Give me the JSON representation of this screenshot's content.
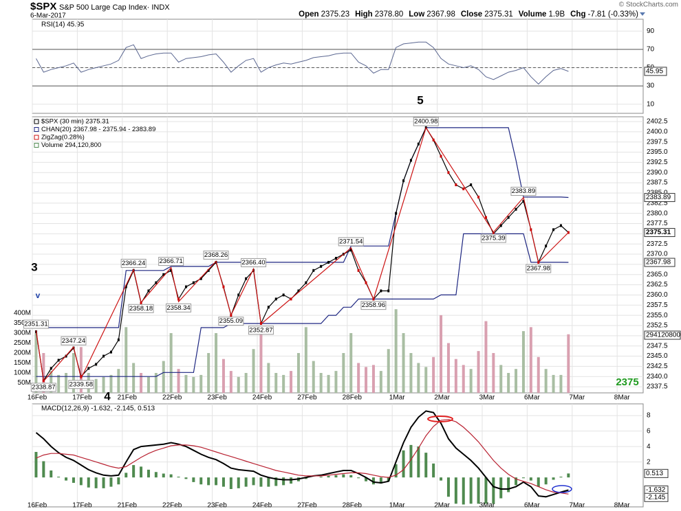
{
  "header": {
    "symbol": "$SPX",
    "name": "S&P 500 Large Cap Index· INDX",
    "date": "6-Mar-2017",
    "quote": [
      {
        "label": "Open",
        "value": "2375.23"
      },
      {
        "label": "High",
        "value": "2378.80"
      },
      {
        "label": "Low",
        "value": "2367.98"
      },
      {
        "label": "Close",
        "value": "2375.31"
      },
      {
        "label": "Volume",
        "value": "1.9B"
      },
      {
        "label": "Chg",
        "value": "-7.81 (-0.33%)"
      }
    ],
    "copyright": "© StockCharts.com"
  },
  "chart_data": {
    "type": "line",
    "x_labels": [
      "16Feb",
      "17Feb",
      "21Feb",
      "22Feb",
      "23Feb",
      "24Feb",
      "27Feb",
      "28Feb",
      "1Mar",
      "2Mar",
      "3Mar",
      "6Mar",
      "7Mar",
      "8Mar"
    ],
    "rsi": {
      "label": "RSI(14) 45.95",
      "color": "#5a6690",
      "ylim": [
        0,
        103
      ],
      "yticks": [
        90,
        70,
        50,
        30,
        10
      ],
      "last": 45.95,
      "values": [
        60,
        45,
        48,
        50,
        52,
        55,
        45,
        48,
        50,
        52,
        54,
        58,
        72,
        75,
        60,
        63,
        65,
        66,
        66,
        56,
        60,
        61,
        62,
        64,
        65,
        56,
        45,
        52,
        58,
        60,
        45,
        50,
        53,
        55,
        54,
        56,
        58,
        61,
        62,
        63,
        65,
        66,
        66,
        56,
        52,
        44,
        48,
        48,
        72,
        76,
        77,
        78,
        78,
        72,
        60,
        54,
        52,
        50,
        52,
        48,
        40,
        37,
        41,
        45,
        47,
        50,
        40,
        32,
        40,
        47,
        49,
        45.95
      ]
    },
    "price": {
      "ylim": [
        2336,
        2403.68
      ],
      "yticks": [
        2337.5,
        {
          "value": 2340,
          "label": "2340.0"
        },
        2342.5,
        {
          "value": 2345,
          "label": "2345.0"
        },
        2347.5,
        {
          "value": 2350,
          "label": "2350.0"
        },
        2352.5,
        {
          "value": 2355,
          "label": "2355.0"
        },
        2357.5,
        {
          "value": 2360,
          "label": "2360.0"
        },
        2362.5,
        {
          "value": 2365,
          "label": "2365.0"
        },
        2367.5,
        {
          "value": 2370,
          "label": "2370.0"
        },
        2372.5,
        {
          "value": 2375,
          "label": "2375.0"
        },
        2377.5,
        {
          "value": 2380,
          "label": "2380.0"
        },
        2382.5,
        {
          "value": 2385,
          "label": "2385.0"
        },
        2387.5,
        {
          "value": 2390,
          "label": "2390.0"
        },
        2392.5,
        {
          "value": 2395,
          "label": "2395.0"
        },
        2397.5,
        {
          "value": 2400,
          "label": "2400.0"
        },
        2402.5
      ],
      "name": "$SPX (30 min) 2375.31",
      "color": "#000000",
      "values": [
        2351,
        2339,
        2342,
        2344,
        2345,
        2347,
        2340,
        2342,
        2343,
        2345,
        2346,
        2349,
        2362,
        2366,
        2358,
        2361,
        2363,
        2365,
        2366,
        2359,
        2362,
        2363,
        2364,
        2366,
        2368,
        2362,
        2355,
        2360,
        2364,
        2366,
        2353,
        2357,
        2359,
        2360,
        2359,
        2361,
        2363,
        2366,
        2367,
        2368,
        2369,
        2370,
        2371,
        2366,
        2363,
        2359,
        2361,
        2361,
        2380,
        2388,
        2393,
        2397,
        2401,
        2398,
        2394,
        2390,
        2387,
        2386,
        2387,
        2384,
        2379,
        2375,
        2377,
        2379,
        2381,
        2383,
        2376,
        2368,
        2372,
        2376,
        2377,
        2375.31
      ],
      "channel": {
        "name": "CHAN(20) 2367.98 - 2375.94 - 2383.89",
        "color": "#1c2580",
        "upper": [
          2352,
          2352,
          2352,
          2352,
          2352,
          2352,
          2352,
          2352,
          2352,
          2352,
          2352,
          2352,
          2366,
          2366,
          2366,
          2366,
          2366,
          2366,
          2367,
          2367,
          2367,
          2367,
          2367,
          2367,
          2368,
          2368,
          2368,
          2368,
          2368,
          2368,
          2368,
          2368,
          2368,
          2368,
          2368,
          2368,
          2368,
          2368,
          2368,
          2368,
          2368,
          2368,
          2372,
          2372,
          2372,
          2372,
          2372,
          2372,
          2380,
          2388,
          2393,
          2397,
          2401,
          2401,
          2401,
          2401,
          2401,
          2401,
          2401,
          2401,
          2401,
          2401,
          2401,
          2401,
          2393,
          2384,
          2384,
          2384,
          2384,
          2384,
          2384,
          2383.89
        ],
        "lower": [
          2340,
          2340,
          2340,
          2340,
          2340,
          2340,
          2340,
          2340,
          2340,
          2340,
          2340,
          2340,
          2340,
          2340,
          2340,
          2340,
          2340,
          2341,
          2341,
          2341,
          2341,
          2341,
          2352,
          2352,
          2352,
          2352,
          2353,
          2353,
          2353,
          2353,
          2353,
          2353,
          2353,
          2353,
          2353,
          2353,
          2353,
          2353,
          2353,
          2355,
          2355,
          2357,
          2357,
          2359,
          2359,
          2359,
          2359,
          2359,
          2359,
          2359,
          2359,
          2359,
          2359,
          2359,
          2360,
          2360,
          2360,
          2375,
          2375,
          2375,
          2375,
          2375,
          2375,
          2375,
          2375,
          2375,
          2368,
          2368,
          2368,
          2368,
          2368,
          2367.98
        ]
      },
      "zigzag": {
        "name": "ZigZag(0.28%)",
        "color": "#cc1111",
        "values": [
          2351.31,
          2338.87,
          2347.24,
          2339.58,
          2366.24,
          2358.18,
          2366.71,
          2358.34,
          2368.26,
          2355.09,
          2366.4,
          2352.87,
          2371.54,
          2358.96,
          2400.98,
          2375.39,
          2383.89,
          2367.98
        ],
        "value_labels": [
          "2351.31",
          "2338.87",
          "2347.24",
          "2339.58",
          "2366.24",
          "2358.18",
          "2366.71",
          "2358.34",
          "2368.26",
          "2355.09",
          "2366.40",
          "2352.87",
          "2371.54",
          "2358.96",
          "2400.98",
          "2375.39",
          "2383.89",
          "2367.98"
        ]
      },
      "right_labels": [
        2383.89,
        2375.31,
        2367.98
      ],
      "annotations": [
        "3",
        "4",
        "5",
        "v",
        "2375"
      ]
    },
    "volume": {
      "name": "Volume 294,120,800",
      "last_label": "294120800",
      "ylim": [
        0,
        400
      ],
      "yticks": [
        {
          "value": 400,
          "label": "400M"
        },
        {
          "value": 350,
          "label": "350M"
        },
        {
          "value": 300,
          "label": "300M"
        },
        {
          "value": 250,
          "label": "250M"
        },
        {
          "value": 200,
          "label": "200M"
        },
        {
          "value": 150,
          "label": "150M"
        },
        {
          "value": 100,
          "label": "100M"
        },
        {
          "value": 50,
          "label": "50M"
        }
      ],
      "up_color": "#a9bea3",
      "down_color": "#d9a0b0",
      "values": [
        300,
        200,
        110,
        90,
        100,
        200,
        230,
        100,
        70,
        80,
        90,
        120,
        330,
        150,
        100,
        80,
        100,
        160,
        300,
        120,
        90,
        80,
        90,
        200,
        300,
        170,
        110,
        80,
        100,
        220,
        300,
        150,
        100,
        90,
        110,
        200,
        330,
        160,
        100,
        90,
        110,
        200,
        300,
        150,
        130,
        140,
        110,
        220,
        420,
        300,
        200,
        150,
        130,
        180,
        390,
        250,
        170,
        140,
        120,
        210,
        360,
        200,
        140,
        100,
        120,
        310,
        330,
        180,
        120,
        90,
        90,
        294.12
      ]
    },
    "macd": {
      "label": "MACD(12,26,9) -1.632, -2.145, 0.513",
      "ylim": [
        -3.81,
        9.52
      ],
      "yticks": [
        8,
        6,
        4,
        2
      ],
      "last_labels": [
        0.513,
        -1.632,
        -2.145
      ],
      "series": [
        {
          "name": "MACD",
          "color": "#000000",
          "values": [
            5.8,
            5.0,
            4.0,
            3.2,
            2.6,
            2.2,
            1.6,
            1.0,
            0.6,
            0.3,
            0.2,
            0.3,
            2.0,
            3.6,
            4.0,
            4.1,
            4.2,
            4.3,
            4.5,
            4.3,
            4.0,
            3.5,
            3.0,
            2.6,
            2.3,
            1.8,
            1.2,
            1.0,
            0.9,
            0.8,
            0.3,
            0.0,
            -0.2,
            -0.3,
            -0.3,
            -0.2,
            0.0,
            0.2,
            0.3,
            0.5,
            0.7,
            0.9,
            0.9,
            0.5,
            0.0,
            -0.6,
            -0.7,
            -0.5,
            2.0,
            4.5,
            6.5,
            7.8,
            8.6,
            8.4,
            7.0,
            5.0,
            3.8,
            3.0,
            2.2,
            1.2,
            0.0,
            -1.2,
            -1.5,
            -1.5,
            -1.2,
            -0.6,
            -1.2,
            -2.4,
            -2.5,
            -2.2,
            -1.9,
            -1.632
          ]
        },
        {
          "name": "Signal",
          "color": "#b82030",
          "values": [
            2.5,
            2.9,
            3.1,
            3.1,
            3.0,
            2.9,
            2.6,
            2.3,
            2.0,
            1.7,
            1.4,
            1.2,
            1.4,
            2.0,
            2.6,
            3.1,
            3.5,
            3.8,
            4.1,
            4.2,
            4.2,
            4.1,
            3.9,
            3.6,
            3.3,
            3.0,
            2.7,
            2.4,
            2.1,
            1.8,
            1.5,
            1.2,
            0.9,
            0.7,
            0.5,
            0.3,
            0.2,
            0.2,
            0.2,
            0.3,
            0.4,
            0.5,
            0.6,
            0.6,
            0.5,
            0.3,
            0.1,
            0.0,
            0.3,
            1.0,
            2.3,
            3.8,
            5.4,
            6.6,
            7.4,
            7.5,
            7.2,
            6.5,
            5.6,
            4.6,
            3.4,
            2.2,
            1.2,
            0.4,
            -0.2,
            -0.5,
            -0.8,
            -1.2,
            -1.6,
            -1.9,
            -2.0,
            -2.145
          ]
        }
      ],
      "histogram": {
        "color": "#4f8a4f",
        "values": [
          3.3,
          2.1,
          0.9,
          0.1,
          -0.4,
          -0.7,
          -1.0,
          -1.3,
          -1.4,
          -1.4,
          -1.2,
          -0.9,
          0.6,
          1.6,
          1.4,
          1.0,
          0.7,
          0.5,
          0.4,
          0.1,
          -0.2,
          -0.6,
          -0.9,
          -1.0,
          -1.0,
          -1.2,
          -1.5,
          -1.4,
          -1.2,
          -1.0,
          -1.2,
          -1.2,
          -1.1,
          -1.0,
          -0.8,
          -0.5,
          -0.2,
          0.0,
          0.1,
          0.2,
          0.3,
          0.4,
          0.3,
          -0.1,
          -0.5,
          -0.9,
          -0.8,
          -0.5,
          1.7,
          3.5,
          4.2,
          4.0,
          3.2,
          1.8,
          -0.4,
          -2.5,
          -3.4,
          -3.5,
          -3.4,
          -3.4,
          -3.4,
          -3.4,
          -2.7,
          -1.9,
          -1.0,
          -0.1,
          -0.4,
          -1.2,
          -0.9,
          -0.3,
          0.1,
          0.513
        ]
      }
    }
  }
}
